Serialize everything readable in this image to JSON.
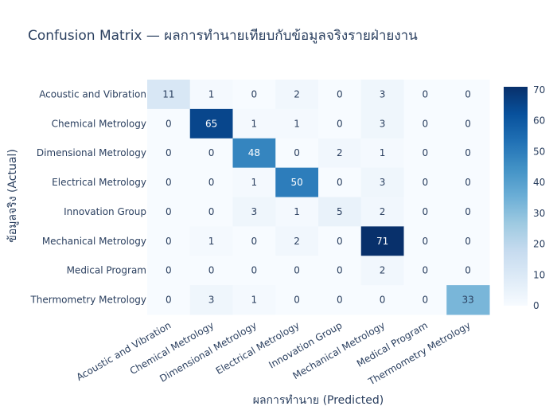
{
  "chart_data": {
    "type": "heatmap",
    "title": "Confusion Matrix — ผลการทำนายเทียบกับข้อมูลจริงรายฝ่ายงาน",
    "xlabel": "ผลการทำนาย (Predicted)",
    "ylabel": "ข้อมูลจริง (Actual)",
    "x_categories": [
      "Acoustic and Vibration",
      "Chemical Metrology",
      "Dimensional Metrology",
      "Electrical Metrology",
      "Innovation Group",
      "Mechanical Metrology",
      "Medical Program",
      "Thermometry Metrology"
    ],
    "y_categories": [
      "Acoustic and Vibration",
      "Chemical Metrology",
      "Dimensional Metrology",
      "Electrical Metrology",
      "Innovation Group",
      "Mechanical Metrology",
      "Medical Program",
      "Thermometry Metrology"
    ],
    "z": [
      [
        11,
        1,
        0,
        2,
        0,
        3,
        0,
        0
      ],
      [
        0,
        65,
        1,
        1,
        0,
        3,
        0,
        0
      ],
      [
        0,
        0,
        48,
        0,
        2,
        1,
        0,
        0
      ],
      [
        0,
        0,
        1,
        50,
        0,
        3,
        0,
        0
      ],
      [
        0,
        0,
        3,
        1,
        5,
        2,
        0,
        0
      ],
      [
        0,
        1,
        0,
        2,
        0,
        71,
        0,
        0
      ],
      [
        0,
        0,
        0,
        0,
        0,
        2,
        0,
        0
      ],
      [
        0,
        3,
        1,
        0,
        0,
        0,
        0,
        33
      ]
    ],
    "zrange": [
      0,
      71
    ],
    "colorscale": "Blues",
    "colorbar_ticks": [
      0,
      10,
      20,
      30,
      40,
      50,
      60,
      70
    ]
  }
}
